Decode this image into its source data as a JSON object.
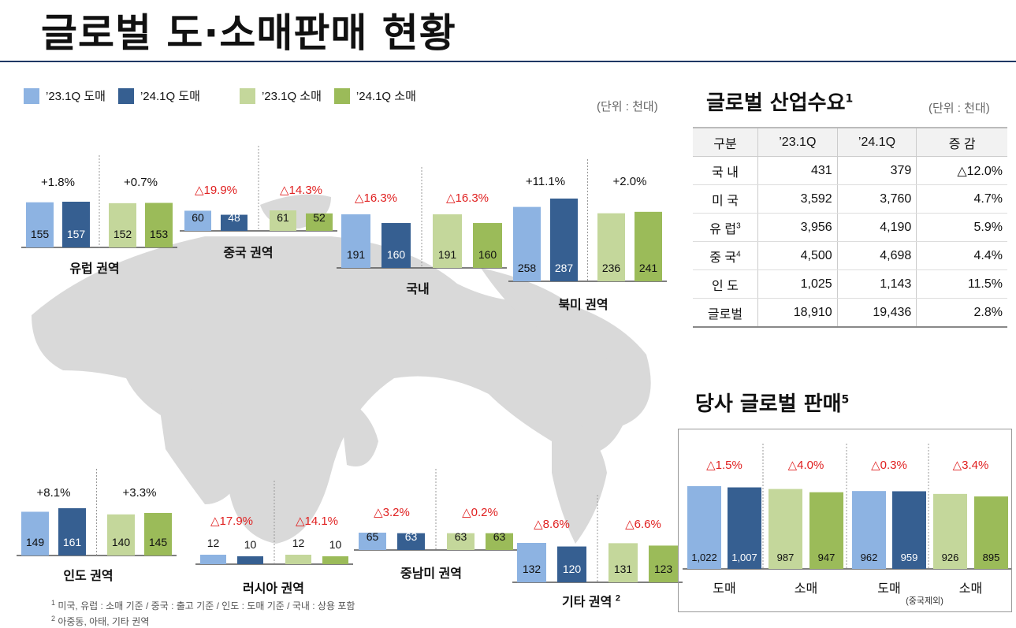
{
  "title": "글로벌 도·소매판매 현황",
  "unit_label": "(단위 : 천대)",
  "legend": [
    {
      "label": "’23.1Q 도매",
      "color": "#8db3e2"
    },
    {
      "label": "’24.1Q 도매",
      "color": "#365f91"
    },
    {
      "label": "’23.1Q 소매",
      "color": "#c4d79b"
    },
    {
      "label": "’24.1Q 소매",
      "color": "#9bbb59"
    }
  ],
  "colors": {
    "negative": "#e02020",
    "positive": "#111111",
    "map": "#d9d9d9",
    "value_text": "#111111"
  },
  "chart_data": [
    {
      "type": "bar",
      "region": "유럽 권역",
      "categories": [
        "’23.1Q 도매",
        "’24.1Q 도매",
        "’23.1Q 소매",
        "’24.1Q 소매"
      ],
      "values": [
        155,
        157,
        152,
        153
      ],
      "changes": [
        "+1.8%",
        "+0.7%"
      ]
    },
    {
      "type": "bar",
      "region": "중국 권역",
      "categories": [
        "’23.1Q 도매",
        "’24.1Q 도매",
        "’23.1Q 소매",
        "’24.1Q 소매"
      ],
      "values": [
        60,
        48,
        61,
        52
      ],
      "changes": [
        "△19.9%",
        "△14.3%"
      ]
    },
    {
      "type": "bar",
      "region": "국내",
      "categories": [
        "’23.1Q 도매",
        "’24.1Q 도매",
        "’23.1Q 소매",
        "’24.1Q 소매"
      ],
      "values": [
        191,
        160,
        191,
        160
      ],
      "changes": [
        "△16.3%",
        "△16.3%"
      ]
    },
    {
      "type": "bar",
      "region": "북미 권역",
      "categories": [
        "’23.1Q 도매",
        "’24.1Q 도매",
        "’23.1Q 소매",
        "’24.1Q 소매"
      ],
      "values": [
        258,
        287,
        236,
        241
      ],
      "changes": [
        "+11.1%",
        "+2.0%"
      ]
    },
    {
      "type": "bar",
      "region": "인도 권역",
      "categories": [
        "’23.1Q 도매",
        "’24.1Q 도매",
        "’23.1Q 소매",
        "’24.1Q 소매"
      ],
      "values": [
        149,
        161,
        140,
        145
      ],
      "changes": [
        "+8.1%",
        "+3.3%"
      ]
    },
    {
      "type": "bar",
      "region": "러시아 권역",
      "categories": [
        "’23.1Q 도매",
        "’24.1Q 도매",
        "’23.1Q 소매",
        "’24.1Q 소매"
      ],
      "values": [
        12,
        10,
        12,
        10
      ],
      "changes": [
        "△17.9%",
        "△14.1%"
      ]
    },
    {
      "type": "bar",
      "region": "중남미 권역",
      "categories": [
        "’23.1Q 도매",
        "’24.1Q 도매",
        "’23.1Q 소매",
        "’24.1Q 소매"
      ],
      "values": [
        65,
        63,
        63,
        63
      ],
      "changes": [
        "△3.2%",
        "△0.2%"
      ]
    },
    {
      "type": "bar",
      "region": "기타 권역",
      "region_sup": "2",
      "categories": [
        "’23.1Q 도매",
        "’24.1Q 도매",
        "’23.1Q 소매",
        "’24.1Q 소매"
      ],
      "values": [
        132,
        120,
        131,
        123
      ],
      "changes": [
        "△8.6%",
        "△6.6%"
      ]
    },
    {
      "type": "bar",
      "region": "당사 글로벌 판매",
      "groups": [
        "도매",
        "소매",
        "도매",
        "소매"
      ],
      "group_note": "(중국제외)",
      "values": [
        1022,
        1007,
        987,
        947,
        962,
        959,
        926,
        895
      ],
      "changes": [
        "△1.5%",
        "△4.0%",
        "△0.3%",
        "△3.4%"
      ]
    }
  ],
  "demand": {
    "title": "글로벌 산업수요",
    "title_sup": "1",
    "unit": "(단위 : 천대)",
    "headers": [
      "구분",
      "’23.1Q",
      "’24.1Q",
      "증 감"
    ],
    "rows": [
      {
        "name": "국 내",
        "sup": "",
        "v23": "431",
        "v24": "379",
        "chg": "△12.0%"
      },
      {
        "name": "미 국",
        "sup": "",
        "v23": "3,592",
        "v24": "3,760",
        "chg": "4.7%"
      },
      {
        "name": "유 럽",
        "sup": "3",
        "v23": "3,956",
        "v24": "4,190",
        "chg": "5.9%"
      },
      {
        "name": "중 국",
        "sup": "4",
        "v23": "4,500",
        "v24": "4,698",
        "chg": "4.4%"
      },
      {
        "name": "인 도",
        "sup": "",
        "v23": "1,025",
        "v24": "1,143",
        "chg": "11.5%"
      }
    ],
    "total": {
      "name": "글로벌",
      "v23": "18,910",
      "v24": "19,436",
      "chg": "2.8%"
    }
  },
  "own_sales": {
    "title": "당사 글로벌 판매",
    "title_sup": "5"
  },
  "footnotes": [
    {
      "num": "1",
      "text": " 미국, 유럽 : 소매 기준 / 중국 : 출고 기준 / 인도 : 도매 기준 / 국내 : 상용 포함"
    },
    {
      "num": "2",
      "text": " 아중동, 아태, 기타 권역"
    }
  ]
}
